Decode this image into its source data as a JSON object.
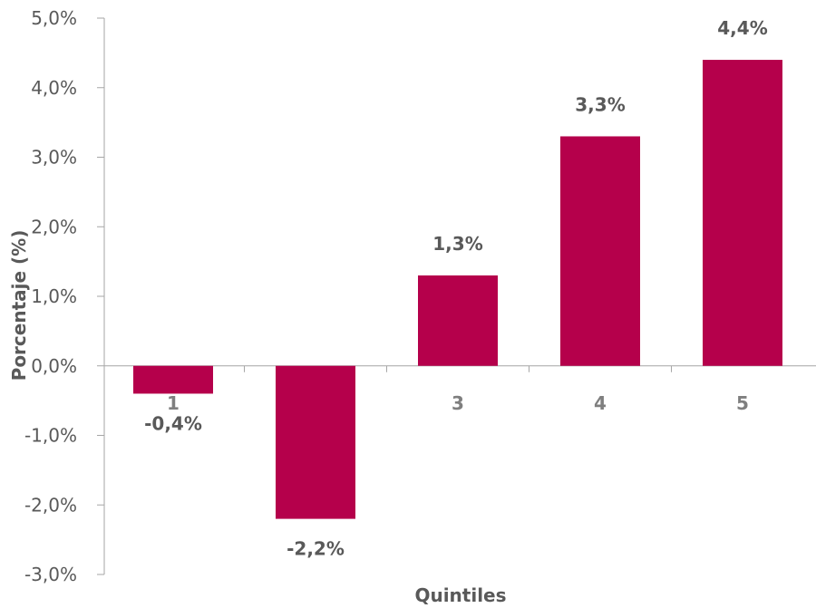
{
  "chart_data": {
    "type": "bar",
    "categories": [
      "1",
      "2",
      "3",
      "4",
      "5"
    ],
    "values": [
      -0.4,
      -2.2,
      1.3,
      3.3,
      4.4
    ],
    "data_labels": [
      "-0,4%",
      "-2,2%",
      "1,3%",
      "3,3%",
      "4,4%"
    ],
    "xlabel": "Quintiles",
    "ylabel": "Porcentaje (%)",
    "ylim": [
      -3.0,
      5.0
    ],
    "y_ticks": [
      5.0,
      4.0,
      3.0,
      2.0,
      1.0,
      0.0,
      -1.0,
      -2.0,
      -3.0
    ],
    "y_tick_labels": [
      "5,0%",
      "4,0%",
      "3,0%",
      "2,0%",
      "1,0%",
      "0,0%",
      "-1,0%",
      "-2,0%",
      "-3,0%"
    ],
    "grid": false,
    "legend": "none",
    "bar_color": "#b5004b",
    "axis_color": "#a6a6a6"
  }
}
